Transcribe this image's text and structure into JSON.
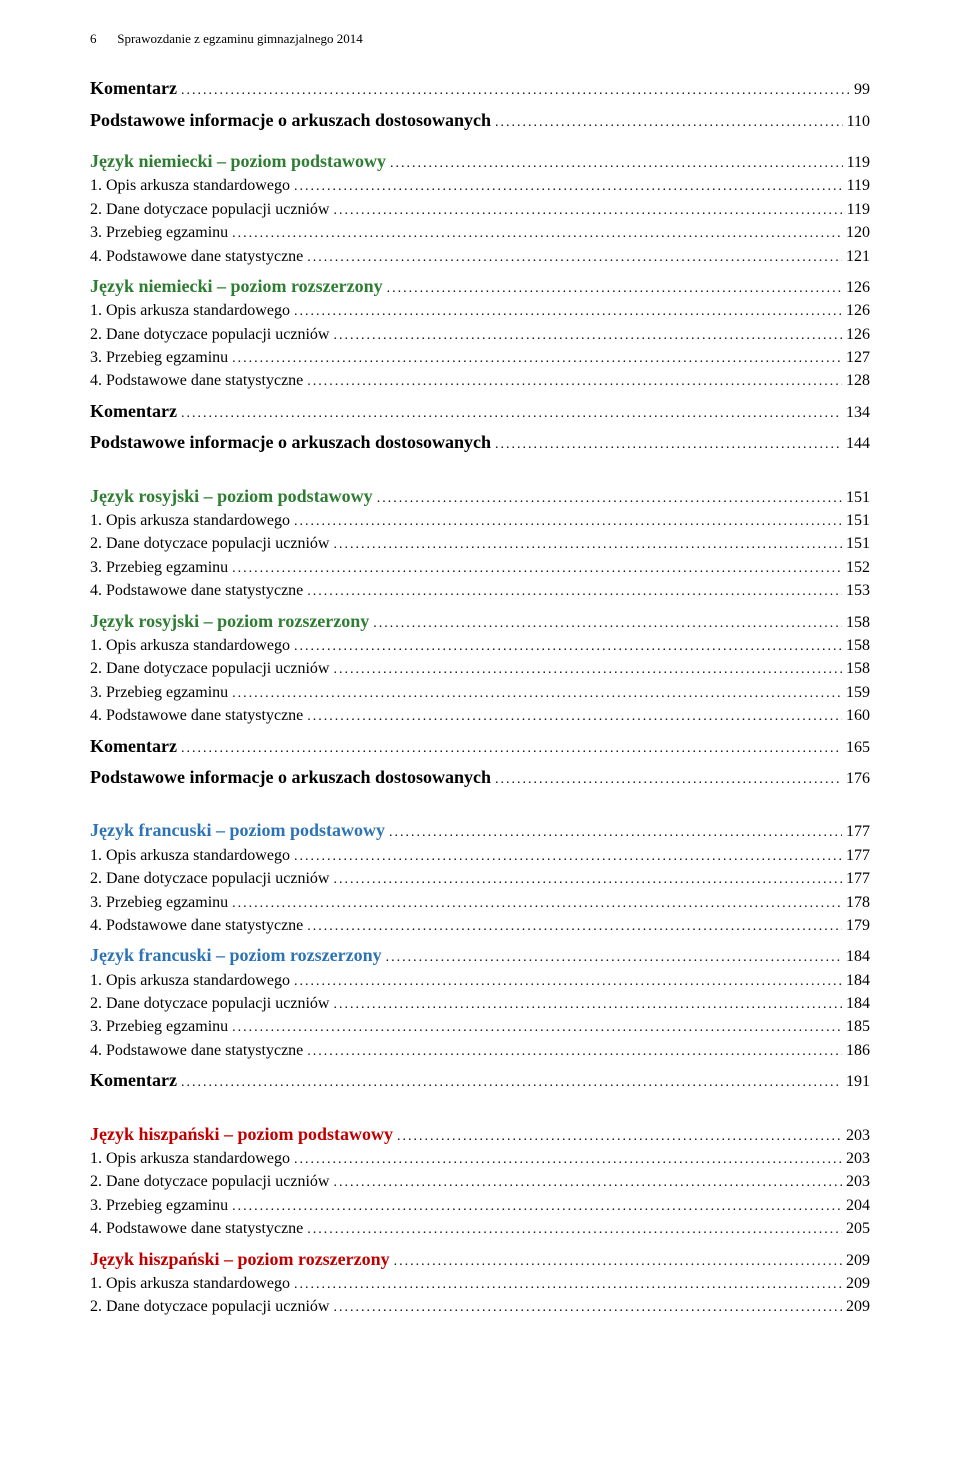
{
  "header": {
    "pagenum": "6",
    "title": "Sprawozdanie z egzaminu gimnazjalnego 2014"
  },
  "leader_char": ".",
  "entries": [
    {
      "label": "Komentarz",
      "page": "99",
      "cls": "bold fs18",
      "gap_before": ""
    },
    {
      "label": "Podstawowe informacje o arkuszach dostosowanych",
      "page": "110",
      "cls": "bold fs18",
      "gap_before": "gap-sm"
    },
    {
      "label": "Język niemiecki – poziom podstawowy",
      "page": "119",
      "cls": "h-green fs18",
      "gap_before": "gap-md"
    },
    {
      "label": "1.   Opis arkusza standardowego",
      "page": "119",
      "cls": "",
      "gap_before": ""
    },
    {
      "label": "2.   Dane dotyczace populacji uczniów",
      "page": "119",
      "cls": "",
      "gap_before": ""
    },
    {
      "label": "3.   Przebieg egzaminu",
      "page": "120",
      "cls": "",
      "gap_before": ""
    },
    {
      "label": "4.   Podstawowe dane statystyczne",
      "page": "121",
      "cls": "",
      "gap_before": ""
    },
    {
      "label": "Język niemiecki – poziom rozszerzony",
      "page": "126",
      "cls": "h-green fs18",
      "gap_before": "gap-sm"
    },
    {
      "label": "1.   Opis arkusza standardowego",
      "page": "126",
      "cls": "",
      "gap_before": ""
    },
    {
      "label": "2.   Dane dotyczace populacji uczniów",
      "page": "126",
      "cls": "",
      "gap_before": ""
    },
    {
      "label": "3.   Przebieg egzaminu",
      "page": "127",
      "cls": "",
      "gap_before": ""
    },
    {
      "label": "4.   Podstawowe dane statystyczne",
      "page": "128",
      "cls": "",
      "gap_before": ""
    },
    {
      "label": "Komentarz",
      "page": "134",
      "cls": "bold fs18",
      "gap_before": "gap-sm"
    },
    {
      "label": "Podstawowe informacje o arkuszach dostosowanych",
      "page": "144",
      "cls": "bold fs18",
      "gap_before": "gap-sm"
    },
    {
      "label": "Język rosyjski – poziom podstawowy",
      "page": "151",
      "cls": "h-green fs18",
      "gap_before": "gap-lg"
    },
    {
      "label": "1.   Opis arkusza standardowego",
      "page": "151",
      "cls": "",
      "gap_before": ""
    },
    {
      "label": "2.   Dane dotyczace populacji uczniów",
      "page": "151",
      "cls": "",
      "gap_before": ""
    },
    {
      "label": "3.   Przebieg egzaminu",
      "page": "152",
      "cls": "",
      "gap_before": ""
    },
    {
      "label": "4.   Podstawowe dane statystyczne",
      "page": "153",
      "cls": "",
      "gap_before": ""
    },
    {
      "label": "Język rosyjski – poziom rozszerzony",
      "page": "158",
      "cls": "h-green fs18",
      "gap_before": "gap-sm"
    },
    {
      "label": "1.   Opis arkusza standardowego",
      "page": "158",
      "cls": "",
      "gap_before": ""
    },
    {
      "label": "2.   Dane dotyczace populacji uczniów",
      "page": "158",
      "cls": "",
      "gap_before": ""
    },
    {
      "label": "3.   Przebieg egzaminu",
      "page": "159",
      "cls": "",
      "gap_before": ""
    },
    {
      "label": "4.   Podstawowe dane statystyczne",
      "page": "160",
      "cls": "",
      "gap_before": ""
    },
    {
      "label": "Komentarz",
      "page": "165",
      "cls": "bold fs18",
      "gap_before": "gap-sm"
    },
    {
      "label": "Podstawowe informacje o arkuszach dostosowanych",
      "page": "176",
      "cls": "bold fs18",
      "gap_before": "gap-sm"
    },
    {
      "label": "Język francuski – poziom podstawowy",
      "page": "177",
      "cls": "h-blue fs18",
      "gap_before": "gap-lg"
    },
    {
      "label": "1.   Opis arkusza standardowego",
      "page": "177",
      "cls": "",
      "gap_before": ""
    },
    {
      "label": "2.   Dane dotyczace populacji uczniów",
      "page": "177",
      "cls": "",
      "gap_before": ""
    },
    {
      "label": "3.   Przebieg egzaminu",
      "page": "178",
      "cls": "",
      "gap_before": ""
    },
    {
      "label": "4.   Podstawowe dane statystyczne",
      "page": "179",
      "cls": "",
      "gap_before": ""
    },
    {
      "label": "Język francuski – poziom rozszerzony",
      "page": "184",
      "cls": "h-blue fs18",
      "gap_before": "gap-sm"
    },
    {
      "label": "1.   Opis arkusza standardowego",
      "page": "184",
      "cls": "",
      "gap_before": ""
    },
    {
      "label": "2.   Dane dotyczace populacji uczniów",
      "page": "184",
      "cls": "",
      "gap_before": ""
    },
    {
      "label": "3.   Przebieg egzaminu",
      "page": "185",
      "cls": "",
      "gap_before": ""
    },
    {
      "label": "4.   Podstawowe dane statystyczne",
      "page": "186",
      "cls": "",
      "gap_before": ""
    },
    {
      "label": "Komentarz",
      "page": "191",
      "cls": "bold fs18",
      "gap_before": "gap-sm"
    },
    {
      "label": "Język hiszpański – poziom podstawowy",
      "page": "203",
      "cls": "h-red fs18",
      "gap_before": "gap-lg"
    },
    {
      "label": "1.   Opis arkusza standardowego",
      "page": "203",
      "cls": "",
      "gap_before": ""
    },
    {
      "label": "2.   Dane dotyczace populacji uczniów",
      "page": "203",
      "cls": "",
      "gap_before": ""
    },
    {
      "label": "3.   Przebieg egzaminu",
      "page": "204",
      "cls": "",
      "gap_before": ""
    },
    {
      "label": "4.   Podstawowe dane statystyczne",
      "page": "205",
      "cls": "",
      "gap_before": ""
    },
    {
      "label": "Język hiszpański – poziom rozszerzony",
      "page": "209",
      "cls": "h-red fs18",
      "gap_before": "gap-sm"
    },
    {
      "label": "1.   Opis arkusza standardowego",
      "page": "209",
      "cls": "",
      "gap_before": ""
    },
    {
      "label": "2.   Dane dotyczace populacji uczniów",
      "page": "209",
      "cls": "",
      "gap_before": ""
    }
  ]
}
